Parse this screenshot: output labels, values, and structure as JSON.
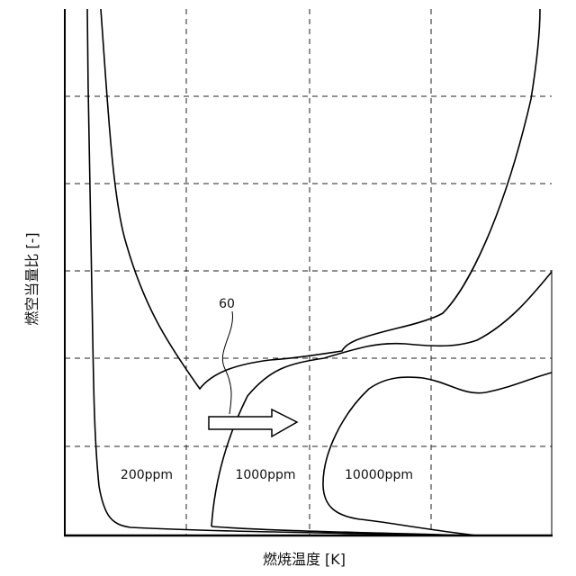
{
  "chart_data": {
    "type": "diagram",
    "xlabel": "燃焼温度 [K]",
    "ylabel": "燃空当量比 [-]",
    "grid": true,
    "regions": [
      {
        "label": "200ppm"
      },
      {
        "label": "1000ppm"
      },
      {
        "label": "10000ppm"
      }
    ],
    "annotation": {
      "label": "60",
      "description_arrow": "right"
    }
  }
}
